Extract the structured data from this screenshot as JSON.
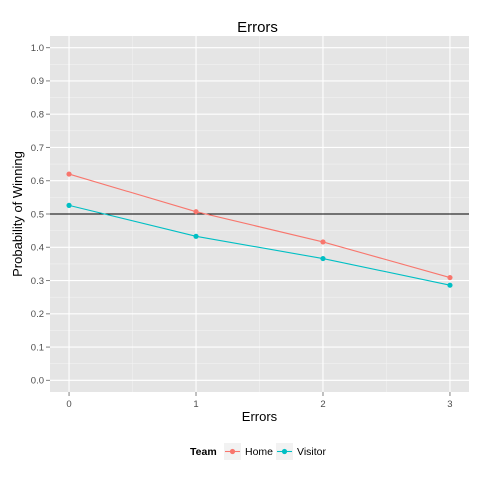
{
  "chart_data": {
    "type": "line",
    "title": "Errors",
    "xlabel": "Errors",
    "ylabel": "Probability of Winning",
    "x": [
      0,
      1,
      2,
      3
    ],
    "x_ticks": [
      "0",
      "1",
      "2",
      "3"
    ],
    "xlim": [
      -0.15,
      3.15
    ],
    "ylim": [
      -0.035,
      1.035
    ],
    "y_ticks": [
      "0.0",
      "0.1",
      "0.2",
      "0.3",
      "0.4",
      "0.5",
      "0.6",
      "0.7",
      "0.8",
      "0.9",
      "1.0"
    ],
    "reference_line": {
      "y": 0.5,
      "color": "#000000"
    },
    "grid": true,
    "panel_background": "#e5e5e5",
    "legend": {
      "title": "Team",
      "position": "bottom"
    },
    "series": [
      {
        "name": "Home",
        "color": "#F8766D",
        "values": [
          0.62,
          0.507,
          0.416,
          0.309
        ]
      },
      {
        "name": "Visitor",
        "color": "#00BFC4",
        "values": [
          0.526,
          0.433,
          0.366,
          0.286
        ]
      }
    ]
  }
}
